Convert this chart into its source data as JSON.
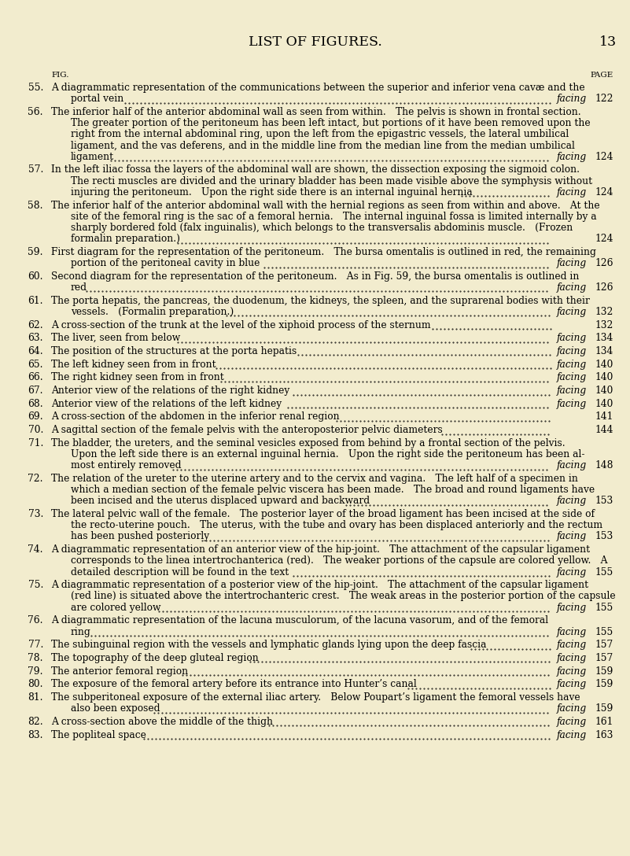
{
  "background_color": "#f2ecce",
  "title": "LIST OF FIGURES.",
  "page_number": "13",
  "fig_label": "FIG.",
  "page_label": "PAGE",
  "entries": [
    {
      "num": "55.",
      "lines": [
        {
          "text": "A diagrammatic representation of the communications between the superior and inferior vena cavæ and the",
          "indent": false
        },
        {
          "text": "portal vein",
          "indent": true,
          "has_dots": true,
          "suffix": "facing",
          "page": "122"
        }
      ]
    },
    {
      "num": "56.",
      "lines": [
        {
          "text": "The inferior half of the anterior abdominal wall as seen from within. The pelvis is shown in frontal section.",
          "indent": false
        },
        {
          "text": "The greater portion of the peritoneum has been left intact, but portions of it have been removed upon the",
          "indent": true
        },
        {
          "text": "right from the internal abdominal ring, upon the left from the epigastric vessels, the lateral umbilical",
          "indent": true
        },
        {
          "text": "ligament, and the vas deferens, and in the middle line from the median line from the median umbilical",
          "indent": true
        },
        {
          "text": "ligament",
          "indent": true,
          "tick_indent": true,
          "has_dots": true,
          "suffix": "facing",
          "page": "124"
        }
      ]
    },
    {
      "num": "57.",
      "lines": [
        {
          "text": "In the left iliac fossa the layers of the abdominal wall are shown, the dissection exposing the sigmoid colon.",
          "indent": false
        },
        {
          "text": "The recti muscles are divided and the urinary bladder has been made visible above the symphysis without",
          "indent": true
        },
        {
          "text": "injuring the peritoneum. Upon the right side there is an internal inguinal hernia",
          "indent": true,
          "has_dots": true,
          "suffix": "facing",
          "page": "124"
        }
      ]
    },
    {
      "num": "58.",
      "lines": [
        {
          "text": "The inferior half of the anterior abdominal wall with the hernial regions as seen from within and above. At the",
          "indent": false
        },
        {
          "text": "site of the femoral ring is the sac of a femoral hernia. The internal inguinal fossa is limited internally by a",
          "indent": true
        },
        {
          "text": "sharply bordered fold (falx inguinalis), which belongs to the transversalis abdominis muscle. (Frozen",
          "indent": true
        },
        {
          "text": "formalin preparation.)",
          "indent": true,
          "has_dots": true,
          "suffix": "",
          "page": "124"
        }
      ]
    },
    {
      "num": "59.",
      "lines": [
        {
          "text": "First diagram for the representation of the peritoneum. The bursa omentalis is outlined in red, the remaining",
          "indent": false
        },
        {
          "text": "portion of the peritoneal cavity in blue",
          "indent": true,
          "has_dots": true,
          "suffix": "facing",
          "page": "126"
        }
      ]
    },
    {
      "num": "60.",
      "lines": [
        {
          "text": "Second diagram for the representation of the peritoneum. As in Fig. 59, the bursa omentalis is outlined in",
          "indent": false
        },
        {
          "text": "red",
          "indent": true,
          "has_dots": true,
          "suffix": "facing",
          "page": "126"
        }
      ]
    },
    {
      "num": "61.",
      "lines": [
        {
          "text": "The porta hepatis, the pancreas, the duodenum, the kidneys, the spleen, and the suprarenal bodies with their",
          "indent": false
        },
        {
          "text": "vessels. (Formalin preparation.)",
          "indent": true,
          "has_dots": true,
          "suffix": "facing",
          "page": "132"
        }
      ]
    },
    {
      "num": "62.",
      "lines": [
        {
          "text": "A cross-section of the trunk at the level of the xiphoid process of the sternum",
          "indent": false,
          "has_dots": true,
          "suffix": "",
          "page": "132"
        }
      ]
    },
    {
      "num": "63.",
      "lines": [
        {
          "text": "The liver, seen from below",
          "indent": false,
          "has_dots": true,
          "suffix": "facing",
          "page": "134"
        }
      ]
    },
    {
      "num": "64.",
      "lines": [
        {
          "text": "The position of the structures at the porta hepatis",
          "indent": false,
          "has_dots": true,
          "suffix": "facing",
          "page": "134"
        }
      ]
    },
    {
      "num": "65.",
      "lines": [
        {
          "text": "The left kidney seen from in front",
          "indent": false,
          "has_dots": true,
          "suffix": "facing",
          "page": "140"
        }
      ]
    },
    {
      "num": "66.",
      "lines": [
        {
          "text": "The right kidney seen from in front",
          "indent": false,
          "has_dots": true,
          "suffix": "facing",
          "page": "140"
        }
      ]
    },
    {
      "num": "67.",
      "lines": [
        {
          "text": "Anterior view of the relations of the right kidney",
          "indent": false,
          "has_dots": true,
          "suffix": "facing",
          "page": "140"
        }
      ]
    },
    {
      "num": "68.",
      "lines": [
        {
          "text": "Anterior view of the relations of the left kidney",
          "indent": false,
          "has_dots": true,
          "suffix": "facing",
          "page": "140"
        }
      ]
    },
    {
      "num": "69.",
      "lines": [
        {
          "text": "A cross-section of the abdomen in the inferior renal region",
          "indent": false,
          "has_dots": true,
          "suffix": "",
          "page": "141"
        }
      ]
    },
    {
      "num": "70.",
      "lines": [
        {
          "text": "A sagittal section of the female pelvis with the anteroposterior pelvic diameters",
          "indent": false,
          "has_dots": true,
          "suffix": "",
          "page": "144"
        }
      ]
    },
    {
      "num": "71.",
      "lines": [
        {
          "text": "The bladder, the ureters, and the seminal vesicles exposed from behind by a frontal section of the pelvis.",
          "indent": false
        },
        {
          "text": "Upon the left side there is an external inguinal hernia. Upon the right side the peritoneum has been al-",
          "indent": true
        },
        {
          "text": "most entirely removed",
          "indent": true,
          "has_dots": true,
          "suffix": "facing",
          "page": "148"
        }
      ]
    },
    {
      "num": "72.",
      "lines": [
        {
          "text": "The relation of the ureter to the uterine artery and to the cervix and vagina. The left half of a specimen in",
          "indent": false
        },
        {
          "text": "which a median section of the female pelvic viscera has been made. The broad and round ligaments have",
          "indent": true
        },
        {
          "text": "been incised and the uterus displaced upward and backward",
          "indent": true,
          "has_dots": true,
          "suffix": "facing",
          "page": "153"
        }
      ]
    },
    {
      "num": "73.",
      "lines": [
        {
          "text": "The lateral pelvic wall of the female. The posterior layer of the broad ligament has been incised at the side of",
          "indent": false
        },
        {
          "text": "the recto-uterine pouch. The uterus, with the tube and ovary has been displaced anteriorly and the rectum",
          "indent": true
        },
        {
          "text": "has been pushed posteriorly",
          "indent": true,
          "has_dots": true,
          "suffix": "facing",
          "page": "153"
        }
      ]
    },
    {
      "num": "74.",
      "lines": [
        {
          "text": "A diagrammatic representation of an anterior view of the hip-joint. The attachment of the capsular ligament",
          "indent": false
        },
        {
          "text": "corresponds to the linea intertrochanterica (red). The weaker portions of the capsule are colored yellow. A",
          "indent": true
        },
        {
          "text": "detailed description will be found in the text",
          "indent": true,
          "has_dots": true,
          "suffix": "facing",
          "page": "155"
        }
      ]
    },
    {
      "num": "75.",
      "lines": [
        {
          "text": "A diagrammatic representation of a posterior view of the hip-joint. The attachment of the capsular ligament",
          "indent": false
        },
        {
          "text": "(red line) is situated above the intertrochanteric crest. The weak areas in the posterior portion of the capsule",
          "indent": true
        },
        {
          "text": "are colored yellow",
          "indent": true,
          "has_dots": true,
          "suffix": "facing",
          "page": "155"
        }
      ]
    },
    {
      "num": "76.",
      "lines": [
        {
          "text": "A diagrammatic representation of the lacuna musculorum, of the lacuna vasorum, and of the femoral",
          "indent": false
        },
        {
          "text": "ring",
          "indent": true,
          "has_dots": true,
          "suffix": "facing",
          "page": "155"
        }
      ]
    },
    {
      "num": "77.",
      "lines": [
        {
          "text": "The subinguinal region with the vessels and lymphatic glands lying upon the deep fascia",
          "indent": false,
          "has_dots": true,
          "suffix": "facing",
          "page": "157"
        }
      ]
    },
    {
      "num": "78.",
      "lines": [
        {
          "text": "The topography of the deep gluteal region",
          "indent": false,
          "has_dots": true,
          "suffix": "facing",
          "page": "157"
        }
      ]
    },
    {
      "num": "79.",
      "lines": [
        {
          "text": "The anterior femoral region",
          "indent": false,
          "has_dots": true,
          "suffix": "facing",
          "page": "159"
        }
      ]
    },
    {
      "num": "80.",
      "lines": [
        {
          "text": "The exposure of the femoral artery before its entrance into Hunter’s canal",
          "indent": false,
          "has_dots": true,
          "suffix": "facing",
          "page": "159"
        }
      ]
    },
    {
      "num": "81.",
      "lines": [
        {
          "text": "The subperitoneal exposure of the external iliac artery. Below Poupart’s ligament the femoral vessels have",
          "indent": false
        },
        {
          "text": "also been exposed",
          "indent": true,
          "has_dots": true,
          "suffix": "facing",
          "page": "159"
        }
      ]
    },
    {
      "num": "82.",
      "lines": [
        {
          "text": "A cross-section above the middle of the thigh",
          "indent": false,
          "has_dots": true,
          "suffix": "facing",
          "page": "161"
        }
      ]
    },
    {
      "num": "83.",
      "lines": [
        {
          "text": "The popliteal space",
          "indent": false,
          "has_dots": true,
          "suffix": "facing",
          "page": "163"
        }
      ]
    }
  ]
}
